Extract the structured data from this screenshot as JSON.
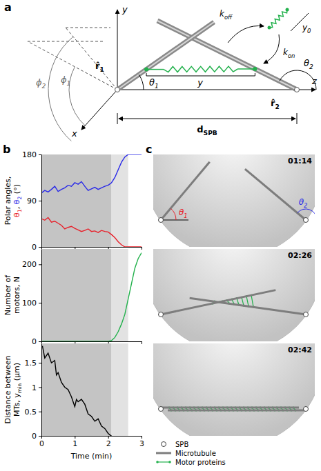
{
  "panel_b": {
    "letter": "b"
  },
  "diagram": {
    "letter": "a",
    "labels": {
      "y_axis": [
        {
          "text": "y"
        }
      ],
      "z_axis": [
        {
          "text": "z"
        }
      ],
      "x_axis": [
        {
          "text": "x"
        }
      ],
      "r1": [
        {
          "text": "r̂",
          "sub": "1"
        }
      ],
      "r2": [
        {
          "text": "r̂",
          "sub": "2"
        }
      ],
      "theta1": [
        {
          "text": "θ",
          "sub": "1"
        }
      ],
      "theta2": [
        {
          "text": "θ",
          "sub": "2"
        }
      ],
      "phi1": [
        {
          "text": "ϕ",
          "sub": "1"
        }
      ],
      "phi2": [
        {
          "text": "ϕ",
          "sub": "2"
        }
      ],
      "d_spb": [
        {
          "text": "d",
          "sub": "SPB"
        }
      ],
      "k_off": [
        {
          "text": "k",
          "sub": "off"
        }
      ],
      "k_on": [
        {
          "text": "k",
          "sub": "on"
        }
      ],
      "y0": [
        {
          "text": "y",
          "sub": "0"
        }
      ],
      "spring_y": [
        {
          "text": "y"
        }
      ]
    }
  },
  "chart_data": [
    {
      "type": "line",
      "xlim": [
        0,
        3
      ],
      "xticks": [
        0,
        1,
        2,
        3
      ],
      "ylim": [
        0,
        180
      ],
      "yticks": [
        0,
        90,
        180
      ],
      "tick_labels": "y",
      "ylabel": [
        [
          {
            "text": "Polar angles,"
          }
        ],
        [
          {
            "text": "θ",
            "sub": "1",
            "color": "#e8202a"
          },
          {
            "text": ", "
          },
          {
            "text": "θ",
            "sub": "2",
            "color": "#2a2ae8"
          },
          {
            "text": " (°)"
          }
        ]
      ],
      "shaded": [
        {
          "from": 0,
          "to": 2.1,
          "color": "#c4c4c4"
        },
        {
          "from": 2.1,
          "to": 2.6,
          "color": "#e2e2e2"
        }
      ],
      "series": [
        {
          "color": "#e8202a",
          "x": [
            0,
            0.1,
            0.2,
            0.3,
            0.4,
            0.5,
            0.6,
            0.7,
            0.8,
            0.9,
            1,
            1.1,
            1.2,
            1.3,
            1.4,
            1.5,
            1.6,
            1.7,
            1.8,
            1.9,
            2,
            2.1,
            2.2,
            2.3,
            2.4,
            2.5,
            2.6,
            2.7,
            2.8,
            2.9,
            3
          ],
          "values": [
            55,
            52,
            57,
            48,
            50,
            46,
            42,
            35,
            38,
            40,
            36,
            33,
            30,
            32,
            35,
            30,
            31,
            28,
            32,
            30,
            29,
            24,
            18,
            10,
            4,
            0,
            0,
            0,
            0,
            0,
            0
          ]
        },
        {
          "color": "#2a2ae8",
          "x": [
            0,
            0.1,
            0.2,
            0.3,
            0.4,
            0.5,
            0.6,
            0.7,
            0.8,
            0.9,
            1,
            1.1,
            1.2,
            1.3,
            1.4,
            1.5,
            1.6,
            1.7,
            1.8,
            1.9,
            2,
            2.1,
            2.2,
            2.3,
            2.4,
            2.5,
            2.6,
            2.7,
            2.8,
            2.9,
            3
          ],
          "values": [
            105,
            110,
            107,
            112,
            118,
            108,
            112,
            115,
            120,
            118,
            125,
            122,
            127,
            118,
            110,
            113,
            116,
            112,
            115,
            118,
            120,
            125,
            135,
            150,
            165,
            175,
            180,
            180,
            180,
            180,
            180
          ]
        }
      ]
    },
    {
      "type": "line",
      "xlim": [
        0,
        3
      ],
      "xticks": [
        0,
        1,
        2,
        3
      ],
      "ylim": [
        0,
        240
      ],
      "yticks": [
        0,
        100,
        200
      ],
      "tick_labels": "y",
      "ylabel": [
        [
          {
            "text": "Number of"
          }
        ],
        [
          {
            "text": "motors, N"
          }
        ]
      ],
      "shaded": [
        {
          "from": 0,
          "to": 2.1,
          "color": "#c4c4c4"
        },
        {
          "from": 2.1,
          "to": 2.6,
          "color": "#e2e2e2"
        }
      ],
      "series": [
        {
          "color": "#22b14c",
          "x": [
            0,
            0.1,
            0.2,
            0.3,
            0.4,
            0.5,
            0.6,
            0.7,
            0.8,
            0.9,
            1,
            1.1,
            1.2,
            1.3,
            1.4,
            1.5,
            1.6,
            1.7,
            1.8,
            1.9,
            2,
            2.1,
            2.2,
            2.3,
            2.4,
            2.5,
            2.6,
            2.7,
            2.8,
            2.9,
            3
          ],
          "values": [
            0,
            0,
            0,
            0,
            0,
            0,
            0,
            0,
            0,
            0,
            0,
            0,
            0,
            0,
            0,
            0,
            0,
            0,
            0,
            0,
            0,
            2,
            10,
            25,
            45,
            70,
            110,
            150,
            190,
            215,
            230
          ]
        }
      ]
    },
    {
      "type": "line",
      "xlim": [
        0,
        3
      ],
      "xticks": [
        0,
        1,
        2,
        3
      ],
      "ylim": [
        0,
        1.9
      ],
      "yticks": [
        0,
        0.5,
        1,
        1.5
      ],
      "xlabel": "Time (min)",
      "ylabel": [
        [
          {
            "text": "Distance between"
          }
        ],
        [
          {
            "text": "MTs, y",
            "sub": "min"
          },
          {
            "text": " (μm)"
          }
        ]
      ],
      "shaded": [
        {
          "from": 0,
          "to": 2.1,
          "color": "#c4c4c4"
        },
        {
          "from": 2.1,
          "to": 2.6,
          "color": "#e2e2e2"
        }
      ],
      "series": [
        {
          "color": "#000000",
          "x": [
            0.03,
            0.1,
            0.2,
            0.3,
            0.4,
            0.45,
            0.5,
            0.6,
            0.7,
            0.8,
            0.9,
            1,
            1.05,
            1.1,
            1.2,
            1.3,
            1.4,
            1.5,
            1.6,
            1.7,
            1.8,
            1.9,
            2,
            2.05,
            2.1
          ],
          "values": [
            1.85,
            1.6,
            1.7,
            1.5,
            1.55,
            1.25,
            1.3,
            1.1,
            1,
            0.95,
            0.8,
            0.6,
            0.75,
            0.7,
            0.75,
            0.65,
            0.45,
            0.4,
            0.3,
            0.35,
            0.2,
            0.15,
            0.05,
            0.02,
            0
          ]
        }
      ]
    }
  ],
  "snapshots": {
    "letter": "c",
    "frames": [
      {
        "time": "01:14",
        "labels": [
          [
            {
              "text": "θ",
              "sub": "1",
              "color": "#e8202a"
            }
          ],
          [
            {
              "text": "θ",
              "sub": "2",
              "color": "#2a2ae8"
            }
          ]
        ]
      },
      {
        "time": "02:26"
      },
      {
        "time": "02:42"
      }
    ],
    "legend": [
      {
        "text": "SPB"
      },
      {
        "text": "Microtubule"
      },
      {
        "text": "Motor proteins"
      }
    ]
  }
}
